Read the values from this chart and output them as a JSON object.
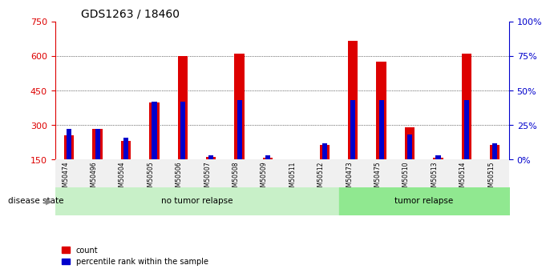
{
  "title": "GDS1263 / 18460",
  "samples": [
    "GSM50474",
    "GSM50496",
    "GSM50504",
    "GSM50505",
    "GSM50506",
    "GSM50507",
    "GSM50508",
    "GSM50509",
    "GSM50511",
    "GSM50512",
    "GSM50473",
    "GSM50475",
    "GSM50510",
    "GSM50513",
    "GSM50514",
    "GSM50515"
  ],
  "counts": [
    255,
    285,
    230,
    400,
    600,
    163,
    610,
    158,
    150,
    215,
    665,
    575,
    290,
    160,
    610,
    215
  ],
  "percentiles": [
    22,
    22,
    16,
    42,
    42,
    3,
    43,
    3,
    0,
    12,
    43,
    43,
    18,
    3,
    43,
    12
  ],
  "groups": [
    "no tumor relapse",
    "no tumor relapse",
    "no tumor relapse",
    "no tumor relapse",
    "no tumor relapse",
    "no tumor relapse",
    "no tumor relapse",
    "no tumor relapse",
    "no tumor relapse",
    "no tumor relapse",
    "tumor relapse",
    "tumor relapse",
    "tumor relapse",
    "tumor relapse",
    "tumor relapse",
    "tumor relapse"
  ],
  "group_labels": [
    "no tumor relapse",
    "tumor relapse"
  ],
  "group_colors": [
    "#c8f0c8",
    "#90e890"
  ],
  "bar_color_red": "#dd0000",
  "bar_color_blue": "#0000cc",
  "left_ylim": [
    150,
    750
  ],
  "left_yticks": [
    150,
    300,
    450,
    600,
    750
  ],
  "right_ylim": [
    0,
    100
  ],
  "right_yticks": [
    0,
    25,
    50,
    75,
    100
  ],
  "right_yticklabels": [
    "0%",
    "25%",
    "50%",
    "75%",
    "100%"
  ],
  "tick_color_left": "#dd0000",
  "tick_color_right": "#0000cc",
  "xlabel_color": "#555555",
  "bg_color": "#f0f0f0",
  "plot_bg": "#ffffff",
  "disease_state_label": "disease state",
  "legend_count": "count",
  "legend_pct": "percentile rank within the sample",
  "bar_width": 0.35
}
